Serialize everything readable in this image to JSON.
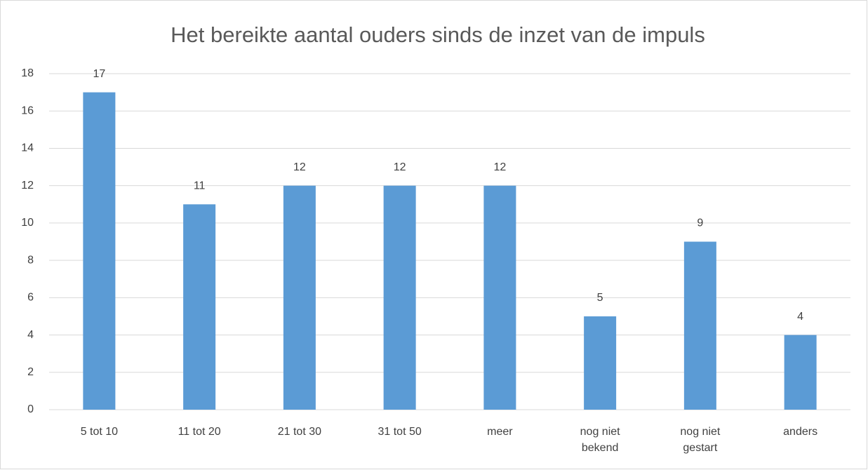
{
  "chart_data": {
    "type": "bar",
    "title": "Het bereikte aantal ouders sinds de inzet van de impuls",
    "categories": [
      "5 tot 10",
      "11 tot 20",
      "21 tot 30",
      "31 tot 50",
      "meer",
      "nog niet bekend",
      "nog niet gestart",
      "anders"
    ],
    "values": [
      17,
      11,
      12,
      12,
      12,
      5,
      9,
      4
    ],
    "color": "#5b9bd5",
    "ylim": [
      0,
      18
    ],
    "yticks": [
      0,
      2,
      4,
      6,
      8,
      10,
      12,
      14,
      16,
      18
    ],
    "grid": true,
    "data_labels": true
  }
}
